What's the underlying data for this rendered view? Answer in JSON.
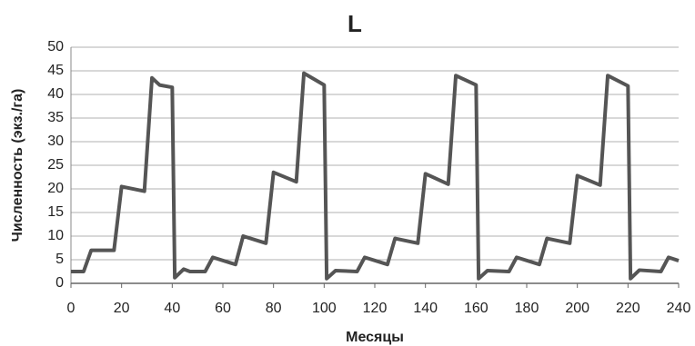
{
  "chart_data": {
    "type": "line",
    "title": "L",
    "x_label": "Месяцы",
    "y_label": "Численность (экз./га)",
    "x": [
      0,
      5,
      8,
      17,
      20,
      29,
      32,
      35,
      40,
      41,
      44.5,
      47,
      53,
      56,
      65,
      68,
      77,
      80,
      89,
      92,
      100,
      101,
      104.5,
      113,
      116,
      125,
      128,
      137,
      140,
      149,
      152,
      160,
      161,
      164.5,
      173,
      176,
      185,
      188,
      197,
      200,
      209,
      212,
      220,
      221,
      224.5,
      233,
      236,
      240
    ],
    "series": [
      {
        "name": "L",
        "color": "#555555",
        "values": [
          2.5,
          2.5,
          7,
          7,
          20.5,
          19.5,
          43.5,
          42,
          41.5,
          1.2,
          3,
          2.5,
          2.5,
          5.5,
          4,
          10,
          8.5,
          23.5,
          21.5,
          44.5,
          42,
          1,
          2.7,
          2.5,
          5.5,
          4,
          9.5,
          8.5,
          23.2,
          21,
          44,
          42,
          1,
          2.7,
          2.5,
          5.5,
          4,
          9.5,
          8.5,
          22.8,
          20.8,
          44,
          41.8,
          1,
          2.8,
          2.5,
          5.5,
          4.8
        ]
      }
    ],
    "xlim": [
      0,
      240
    ],
    "xticks": [
      0,
      20,
      40,
      60,
      80,
      100,
      120,
      140,
      160,
      180,
      200,
      220,
      240
    ],
    "ylim": [
      0,
      50
    ],
    "yticks": [
      0,
      5,
      10,
      15,
      20,
      25,
      30,
      35,
      40,
      45,
      50
    ],
    "grid": true
  }
}
